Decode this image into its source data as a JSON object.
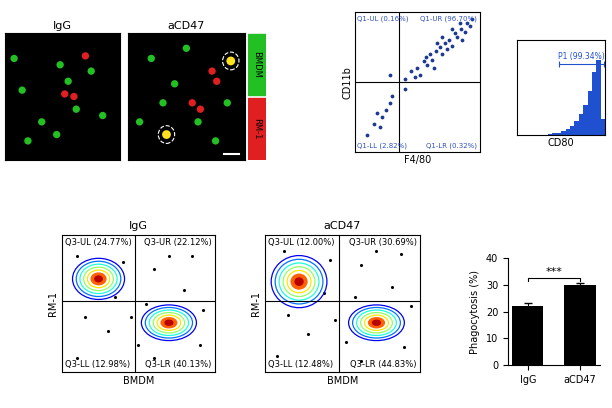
{
  "chart_data": [
    {
      "type": "image",
      "title": "IgG",
      "xlim": [
        0,
        100
      ],
      "ylim": [
        0,
        100
      ],
      "tick_labels": false,
      "spots": [
        {
          "channel": "BMDM",
          "points": [
            [
              15,
              55
            ],
            [
              32,
              30
            ],
            [
              48,
              75
            ],
            [
              55,
              62
            ],
            [
              62,
              40
            ],
            [
              75,
              70
            ],
            [
              85,
              35
            ],
            [
              20,
              15
            ],
            [
              45,
              20
            ],
            [
              8,
              80
            ]
          ]
        },
        {
          "channel": "RM-1",
          "points": [
            [
              70,
              82
            ],
            [
              52,
              52
            ],
            [
              60,
              50
            ]
          ]
        }
      ],
      "merged": []
    },
    {
      "type": "image",
      "title": "aCD47",
      "xlim": [
        0,
        100
      ],
      "ylim": [
        0,
        100
      ],
      "tick_labels": false,
      "spots": [
        {
          "channel": "BMDM",
          "points": [
            [
              20,
              80
            ],
            [
              30,
              45
            ],
            [
              50,
              88
            ],
            [
              60,
              30
            ],
            [
              85,
              45
            ],
            [
              40,
              60
            ],
            [
              75,
              15
            ],
            [
              10,
              30
            ]
          ]
        },
        {
          "channel": "RM-1",
          "points": [
            [
              72,
              70
            ],
            [
              76,
              62
            ],
            [
              55,
              45
            ],
            [
              62,
              40
            ]
          ]
        }
      ],
      "merged": [
        [
          88,
          78
        ],
        [
          33,
          20
        ]
      ]
    },
    {
      "type": "legend",
      "channels": [
        {
          "name": "BMDM",
          "color": "#22c022"
        },
        {
          "name": "RM-1",
          "color": "#e02020"
        }
      ],
      "merged_color": "#ffe020"
    },
    {
      "type": "scatter",
      "x_label": "F4/80",
      "y_label": "CD11b",
      "xlim": [
        0,
        100
      ],
      "ylim": [
        0,
        100
      ],
      "tick_labels": false,
      "color": "#1f3a93",
      "gate": [
        35,
        50
      ],
      "quadrants": {
        "UL": "Q1-UL (0.16%)",
        "UR": "Q1-UR (96.70%)",
        "LL": "Q1-LL (2.82%)",
        "LR": "Q1-LR (0.32%)"
      },
      "points": [
        [
          40,
          52
        ],
        [
          45,
          58
        ],
        [
          50,
          60
        ],
        [
          52,
          55
        ],
        [
          55,
          65
        ],
        [
          58,
          62
        ],
        [
          60,
          70
        ],
        [
          62,
          66
        ],
        [
          65,
          72
        ],
        [
          68,
          75
        ],
        [
          70,
          70
        ],
        [
          72,
          78
        ],
        [
          75,
          80
        ],
        [
          78,
          76
        ],
        [
          80,
          85
        ],
        [
          82,
          82
        ],
        [
          85,
          88
        ],
        [
          88,
          86
        ],
        [
          90,
          92
        ],
        [
          92,
          90
        ],
        [
          63,
          60
        ],
        [
          57,
          68
        ],
        [
          74,
          74
        ],
        [
          86,
          80
        ],
        [
          66,
          78
        ],
        [
          48,
          54
        ],
        [
          70,
          82
        ],
        [
          78,
          88
        ],
        [
          84,
          92
        ],
        [
          94,
          95
        ],
        [
          10,
          12
        ],
        [
          15,
          20
        ],
        [
          20,
          18
        ],
        [
          25,
          30
        ],
        [
          28,
          35
        ],
        [
          30,
          40
        ],
        [
          18,
          28
        ],
        [
          22,
          25
        ],
        [
          28,
          55
        ],
        [
          40,
          45
        ]
      ]
    },
    {
      "type": "histogram",
      "x_label": "CD80",
      "xlim": [
        0,
        100
      ],
      "ylim": [
        0,
        120
      ],
      "tick_labels": false,
      "color": "#1f50d0",
      "bins": [
        0,
        5,
        10,
        15,
        20,
        25,
        30,
        35,
        40,
        45,
        50,
        55,
        60,
        65,
        70,
        75,
        80,
        85,
        90,
        95,
        100
      ],
      "counts": [
        0,
        0,
        0,
        0,
        0,
        0,
        0,
        1,
        2,
        3,
        5,
        8,
        12,
        18,
        26,
        38,
        55,
        80,
        95,
        20
      ],
      "gate": {
        "label": "P1 (99.34%)",
        "range": [
          48,
          98
        ],
        "y": 90
      }
    },
    {
      "type": "contour",
      "title": "IgG",
      "x_label": "BMDM",
      "y_label": "RM-1",
      "xlim": [
        0,
        100
      ],
      "ylim": [
        0,
        100
      ],
      "tick_labels": false,
      "gate": [
        48,
        52
      ],
      "quadrants": {
        "UL": "Q3-UL (24.77%)",
        "UR": "Q3-UR (22.12%)",
        "LL": "Q3-LL (12.98%)",
        "LR": "Q3-LR (40.13%)"
      },
      "populations": [
        {
          "x": 24,
          "y": 68,
          "width": 34,
          "height": 30
        },
        {
          "x": 70,
          "y": 36,
          "width": 36,
          "height": 26
        }
      ],
      "points": [
        [
          10,
          85
        ],
        [
          40,
          80
        ],
        [
          60,
          75
        ],
        [
          80,
          60
        ],
        [
          90,
          20
        ],
        [
          50,
          20
        ],
        [
          30,
          30
        ],
        [
          15,
          40
        ],
        [
          70,
          85
        ],
        [
          55,
          50
        ],
        [
          35,
          55
        ],
        [
          85,
          85
        ],
        [
          10,
          10
        ],
        [
          60,
          10
        ],
        [
          92,
          45
        ],
        [
          45,
          40
        ]
      ]
    },
    {
      "type": "contour",
      "title": "aCD47",
      "x_label": "BMDM",
      "y_label": "RM-1",
      "xlim": [
        0,
        100
      ],
      "ylim": [
        0,
        100
      ],
      "tick_labels": false,
      "gate": [
        48,
        52
      ],
      "quadrants": {
        "UL": "Q3-UL (12.00%)",
        "UR": "Q3-UR (30.69%)",
        "LL": "Q3-LL (12.48%)",
        "LR": "Q3-LR (44.83%)"
      },
      "populations": [
        {
          "x": 22,
          "y": 66,
          "width": 36,
          "height": 38
        },
        {
          "x": 72,
          "y": 36,
          "width": 36,
          "height": 26
        }
      ],
      "points": [
        [
          12,
          88
        ],
        [
          42,
          82
        ],
        [
          62,
          78
        ],
        [
          82,
          62
        ],
        [
          90,
          18
        ],
        [
          52,
          22
        ],
        [
          28,
          28
        ],
        [
          15,
          42
        ],
        [
          72,
          88
        ],
        [
          58,
          55
        ],
        [
          38,
          58
        ],
        [
          88,
          86
        ],
        [
          8,
          12
        ],
        [
          62,
          8
        ],
        [
          94,
          48
        ],
        [
          45,
          38
        ]
      ]
    },
    {
      "type": "bar",
      "categories": [
        "IgG",
        "aCD47"
      ],
      "values": [
        22.3,
        30.1
      ],
      "errors": [
        0.9,
        0.5
      ],
      "color": "#000000",
      "y_label": "Phagocytosis (%)",
      "ylim": [
        0,
        40
      ],
      "yticks": [
        0,
        10,
        20,
        30,
        40
      ],
      "annotations": [
        "***"
      ]
    }
  ]
}
